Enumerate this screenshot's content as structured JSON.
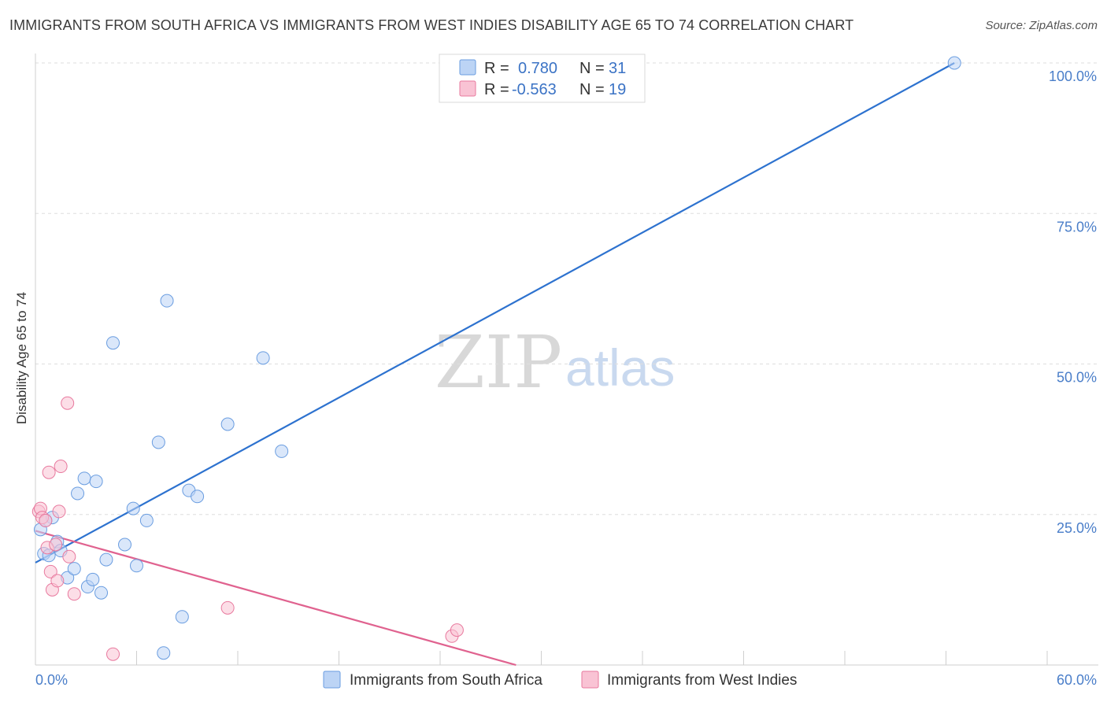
{
  "header": {
    "title": "IMMIGRANTS FROM SOUTH AFRICA VS IMMIGRANTS FROM WEST INDIES DISABILITY AGE 65 TO 74 CORRELATION CHART",
    "source": "Source: ZipAtlas.com"
  },
  "watermark": {
    "zip": "ZIP",
    "atlas": "atlas"
  },
  "stats_legend": {
    "rows": [
      {
        "r_label": "R =",
        "r_value": "0.780",
        "n_label": "N =",
        "n_value": "31",
        "color": "#a9c8f2"
      },
      {
        "r_label": "R =",
        "r_value": "-0.563",
        "n_label": "N =",
        "n_value": "19",
        "color": "#f7b8cc"
      }
    ]
  },
  "chart_data": {
    "type": "scatter",
    "title": "IMMIGRANTS FROM SOUTH AFRICA VS IMMIGRANTS FROM WEST INDIES DISABILITY AGE 65 TO 74 CORRELATION CHART",
    "xlabel": "",
    "ylabel": "Disability Age 65 to 74",
    "xlim": [
      0,
      60
    ],
    "ylim": [
      0,
      100
    ],
    "x_tick_labels": [
      "0.0%",
      "60.0%"
    ],
    "y_ticks": [
      25,
      50,
      75,
      100
    ],
    "y_tick_labels": [
      "25.0%",
      "50.0%",
      "75.0%",
      "100.0%"
    ],
    "grid": true,
    "series": [
      {
        "name": "Immigrants from South Africa",
        "color": "#6a9de0",
        "fill": "#bcd4f5",
        "points": [
          [
            0.3,
            22.5
          ],
          [
            0.5,
            18.5
          ],
          [
            0.8,
            18.2
          ],
          [
            1.0,
            24.5
          ],
          [
            1.3,
            20.5
          ],
          [
            1.5,
            19.0
          ],
          [
            1.9,
            14.5
          ],
          [
            2.3,
            16.0
          ],
          [
            2.5,
            28.5
          ],
          [
            2.9,
            31.0
          ],
          [
            3.1,
            13.0
          ],
          [
            3.4,
            14.2
          ],
          [
            3.6,
            30.5
          ],
          [
            3.9,
            12.0
          ],
          [
            4.2,
            17.5
          ],
          [
            4.6,
            53.5
          ],
          [
            5.3,
            20.0
          ],
          [
            5.8,
            26.0
          ],
          [
            6.0,
            16.5
          ],
          [
            6.6,
            24.0
          ],
          [
            7.3,
            37.0
          ],
          [
            7.6,
            2.0
          ],
          [
            7.8,
            60.5
          ],
          [
            8.7,
            8.0
          ],
          [
            9.1,
            29.0
          ],
          [
            9.6,
            28.0
          ],
          [
            11.4,
            40.0
          ],
          [
            13.5,
            51.0
          ],
          [
            14.6,
            35.5
          ],
          [
            54.5,
            100.0
          ],
          [
            0.6,
            24.0
          ]
        ],
        "trend": {
          "x": [
            0,
            54.5
          ],
          "y": [
            17.0,
            100.0
          ]
        }
      },
      {
        "name": "Immigrants from West Indies",
        "color": "#e8799e",
        "fill": "#f9c3d4",
        "points": [
          [
            0.2,
            25.5
          ],
          [
            0.3,
            26.0
          ],
          [
            0.4,
            24.5
          ],
          [
            0.6,
            24.0
          ],
          [
            0.7,
            19.5
          ],
          [
            0.8,
            32.0
          ],
          [
            0.9,
            15.5
          ],
          [
            1.0,
            12.5
          ],
          [
            1.2,
            20.0
          ],
          [
            1.3,
            14.0
          ],
          [
            1.4,
            25.5
          ],
          [
            1.5,
            33.0
          ],
          [
            1.9,
            43.5
          ],
          [
            2.0,
            18.0
          ],
          [
            2.3,
            11.8
          ],
          [
            4.6,
            1.8
          ],
          [
            11.4,
            9.5
          ],
          [
            24.7,
            4.8
          ],
          [
            25.0,
            5.8
          ]
        ],
        "trend": {
          "x": [
            0,
            28.5
          ],
          "y": [
            22.3,
            0.0
          ]
        }
      }
    ]
  },
  "bottom_legend": {
    "items": [
      {
        "label": "Immigrants from South Africa",
        "color": "#a9c8f2"
      },
      {
        "label": "Immigrants from West Indies",
        "color": "#f7b8cc"
      }
    ]
  }
}
